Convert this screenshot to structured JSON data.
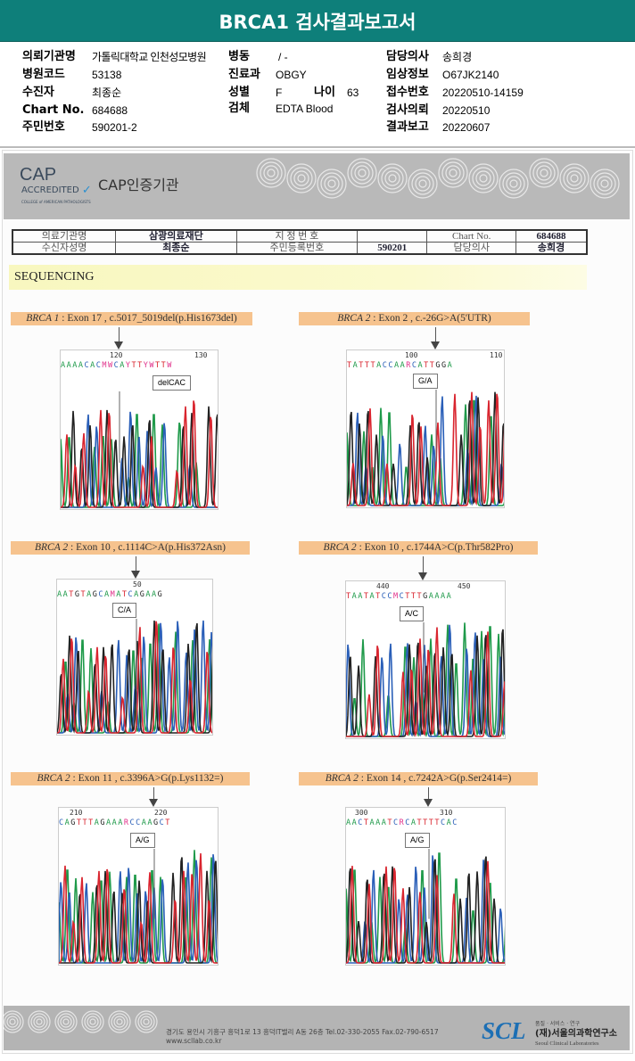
{
  "header": {
    "title": "BRCA1 검사결과보고서"
  },
  "info": {
    "institution_label": "의뢰기관명",
    "institution": "가톨릭대학교 인천성모병원",
    "ward_label": "병동",
    "ward": "/ -",
    "doctor_label": "담당의사",
    "doctor": "송희경",
    "hospital_code_label": "병원코드",
    "hospital_code": "53138",
    "department_label": "진료과",
    "department": "OBGY",
    "clinical_label": "임상정보",
    "clinical": "O67JK2140",
    "patient_label": "수진자",
    "patient": "최종순",
    "sex_label": "성별",
    "sex": "F",
    "age_label": "나이",
    "age": "63",
    "receipt_label": "접수번호",
    "receipt": "20220510-14159",
    "chart_label": "Chart No.",
    "chart": "684688",
    "specimen_label": "검체",
    "specimen": "EDTA Blood",
    "request_label": "검사의뢰",
    "request": "20220510",
    "id_label": "주민번호",
    "id": "590201-2",
    "result_label": "결과보고",
    "result": "20220607"
  },
  "cap": {
    "mark": "CAP",
    "accredited": "ACCREDITED",
    "college": "COLLEGE of AMERICAN PATHOLOGISTS",
    "text": "CAP인증기관"
  },
  "table": {
    "r1": [
      "의료기관명",
      "삼광의료재단",
      "지 정 번 호",
      "",
      "Chart No.",
      "684688"
    ],
    "r2": [
      "수신자성명",
      "최종순",
      "주민등록번호",
      "590201",
      "담당의사",
      "송희경"
    ]
  },
  "section": "SEQUENCING",
  "panels": [
    {
      "gene": "BRCA 1",
      "desc": " : Exon 17 , c.5017_5019del(p.His1673del)",
      "pos1": "120",
      "pos2": "130",
      "seq": "AAAACACMWCAYTTYWTTW",
      "mut": "delCAC"
    },
    {
      "gene": "BRCA 2",
      "desc": " : Exon 2 , c.-26G>A(5'UTR)",
      "pos1": "100",
      "pos2": "110",
      "seq": "TATTTACCAARCATTGGA",
      "mut": "G/A"
    },
    {
      "gene": "BRCA 2",
      "desc": " : Exon 10 , c.1114C>A(p.His372Asn)",
      "pos1": "50",
      "pos2": "",
      "seq": "AATGTAGCAMATCAGAAG",
      "mut": "C/A"
    },
    {
      "gene": "BRCA 2",
      "desc": " : Exon 10 , c.1744A>C(p.Thr582Pro)",
      "pos1": "440",
      "pos2": "450",
      "seq": "TAATATCCMCTTTGAAAA",
      "mut": "A/C"
    },
    {
      "gene": "BRCA 2",
      "desc": " : Exon 11 , c.3396A>G(p.Lys1132=)",
      "pos1": "210",
      "pos2": "220",
      "seq": "CAGTTTAGAAARCCAAGCT",
      "mut": "A/G"
    },
    {
      "gene": "BRCA 2",
      "desc": " : Exon 14 , c.7242A>G(p.Ser2414=)",
      "pos1": "300",
      "pos2": "310",
      "seq": "AACTAAATCRCATTTTCAC",
      "mut": "A/G"
    }
  ],
  "base_colors": {
    "A": "#1f9a4a",
    "C": "#2a5fb8",
    "G": "#222222",
    "T": "#d9252f",
    "X": "#e0308a"
  },
  "footer": {
    "address": "경기도 용인시 기흥구 흥덕1로 13 흥덕IT밸리 A동 26층  Tel.02-330-2055  Fax.02-790-6517  www.scllab.co.kr",
    "logo": "SCL",
    "slogan": "품질 · 서비스 · 연구",
    "name_ko": "(재)서울의과학연구소",
    "name_en": "Seoul Clinical Laboratories"
  }
}
